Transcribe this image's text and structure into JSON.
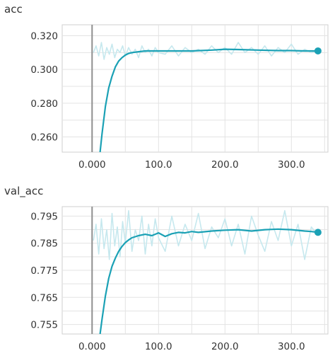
{
  "chart_data": [
    {
      "type": "line",
      "title": "acc",
      "xlabel": "",
      "ylabel": "",
      "xlim": [
        -45,
        355
      ],
      "ylim": [
        0.251,
        0.3265
      ],
      "x_ticks": [
        0,
        100,
        200,
        300
      ],
      "x_tick_labels": [
        "0.000",
        "100.0",
        "200.0",
        "300.0"
      ],
      "y_ticks": [
        0.26,
        0.28,
        0.3,
        0.32
      ],
      "y_tick_labels": [
        "0.260",
        "0.280",
        "0.300",
        "0.320"
      ],
      "grid": true,
      "series": [
        {
          "role": "smoothed",
          "color": "#1ba1b5",
          "x": [
            12,
            15,
            20,
            25,
            30,
            35,
            40,
            45,
            50,
            55,
            60,
            70,
            80,
            100,
            120,
            150,
            180,
            200,
            220,
            250,
            280,
            300,
            320,
            340
          ],
          "y": [
            0.251,
            0.262,
            0.278,
            0.289,
            0.296,
            0.3015,
            0.305,
            0.307,
            0.3085,
            0.3095,
            0.31,
            0.3105,
            0.311,
            0.311,
            0.311,
            0.311,
            0.3115,
            0.312,
            0.3118,
            0.3115,
            0.3112,
            0.3112,
            0.311,
            0.311
          ]
        },
        {
          "role": "raw",
          "color": "#c6e8ee",
          "x": [
            2,
            6,
            10,
            14,
            18,
            22,
            26,
            30,
            34,
            38,
            42,
            46,
            50,
            55,
            60,
            65,
            70,
            75,
            80,
            85,
            90,
            95,
            100,
            110,
            120,
            130,
            140,
            150,
            160,
            170,
            180,
            190,
            200,
            210,
            220,
            230,
            240,
            250,
            260,
            270,
            280,
            290,
            300,
            310,
            320,
            330,
            340
          ],
          "y": [
            0.31,
            0.314,
            0.308,
            0.316,
            0.306,
            0.313,
            0.309,
            0.315,
            0.307,
            0.312,
            0.31,
            0.314,
            0.308,
            0.313,
            0.309,
            0.312,
            0.307,
            0.314,
            0.31,
            0.312,
            0.308,
            0.313,
            0.31,
            0.309,
            0.314,
            0.308,
            0.313,
            0.31,
            0.312,
            0.309,
            0.314,
            0.31,
            0.313,
            0.309,
            0.316,
            0.31,
            0.313,
            0.309,
            0.314,
            0.308,
            0.313,
            0.31,
            0.315,
            0.309,
            0.312,
            0.31,
            0.311
          ]
        }
      ]
    },
    {
      "type": "line",
      "title": "val_acc",
      "xlabel": "",
      "ylabel": "",
      "xlim": [
        -45,
        355
      ],
      "ylim": [
        0.7515,
        0.7985
      ],
      "x_ticks": [
        0,
        100,
        200,
        300
      ],
      "x_tick_labels": [
        "0.000",
        "100.0",
        "200.0",
        "300.0"
      ],
      "y_ticks": [
        0.755,
        0.765,
        0.775,
        0.785,
        0.795
      ],
      "y_tick_labels": [
        "0.755",
        "0.765",
        "0.775",
        "0.785",
        "0.795"
      ],
      "grid": true,
      "series": [
        {
          "role": "smoothed",
          "color": "#1ba1b5",
          "x": [
            12,
            15,
            20,
            25,
            30,
            35,
            40,
            45,
            50,
            55,
            60,
            70,
            80,
            90,
            100,
            110,
            120,
            130,
            140,
            150,
            160,
            180,
            200,
            220,
            240,
            260,
            280,
            300,
            320,
            330,
            340
          ],
          "y": [
            0.7515,
            0.757,
            0.7655,
            0.772,
            0.7765,
            0.7795,
            0.782,
            0.7838,
            0.7852,
            0.7862,
            0.787,
            0.7878,
            0.7883,
            0.7878,
            0.7888,
            0.7875,
            0.7885,
            0.789,
            0.7888,
            0.7893,
            0.789,
            0.7895,
            0.7898,
            0.79,
            0.7895,
            0.79,
            0.7902,
            0.79,
            0.7895,
            0.7893,
            0.789
          ]
        },
        {
          "role": "raw",
          "color": "#c6e8ee",
          "x": [
            2,
            6,
            10,
            14,
            18,
            22,
            26,
            30,
            34,
            38,
            42,
            46,
            50,
            55,
            60,
            65,
            70,
            75,
            80,
            85,
            90,
            95,
            100,
            110,
            120,
            130,
            140,
            150,
            160,
            170,
            180,
            190,
            200,
            210,
            220,
            230,
            240,
            250,
            260,
            270,
            280,
            290,
            300,
            310,
            320,
            330,
            340
          ],
          "y": [
            0.786,
            0.792,
            0.781,
            0.794,
            0.783,
            0.79,
            0.779,
            0.796,
            0.784,
            0.791,
            0.78,
            0.793,
            0.785,
            0.797,
            0.782,
            0.79,
            0.786,
            0.795,
            0.781,
            0.792,
            0.784,
            0.794,
            0.787,
            0.782,
            0.795,
            0.784,
            0.792,
            0.786,
            0.796,
            0.783,
            0.791,
            0.787,
            0.794,
            0.784,
            0.792,
            0.781,
            0.795,
            0.788,
            0.782,
            0.793,
            0.786,
            0.797,
            0.784,
            0.792,
            0.779,
            0.791,
            0.788
          ]
        }
      ]
    }
  ]
}
